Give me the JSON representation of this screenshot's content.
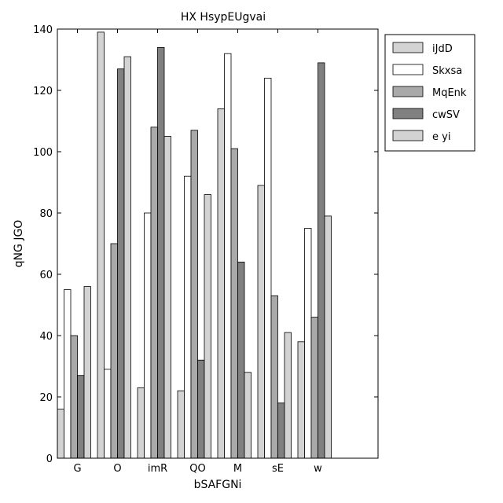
{
  "chart_data": {
    "type": "bar",
    "title": "HX HsypEUgvai",
    "xlabel": "bSAFGNi",
    "ylabel": "qNG JGO",
    "categories": [
      "G",
      "O",
      "imR",
      "QO",
      "M",
      "sE",
      "w"
    ],
    "series": [
      {
        "name": "iJdD",
        "color": "#d3d3d3",
        "values": [
          16,
          139,
          23,
          22,
          114,
          89,
          38
        ]
      },
      {
        "name": "Skxsa",
        "color": "#ffffff",
        "values": [
          55,
          29,
          80,
          92,
          132,
          124,
          75
        ]
      },
      {
        "name": "MqEnk",
        "color": "#a9a9a9",
        "values": [
          40,
          70,
          108,
          107,
          101,
          53,
          46
        ]
      },
      {
        "name": "cwSV",
        "color": "#808080",
        "values": [
          27,
          127,
          134,
          32,
          64,
          18,
          129
        ]
      },
      {
        "name": "e yi",
        "color": "#d3d3d3",
        "values": [
          56,
          131,
          105,
          86,
          28,
          41,
          79
        ]
      }
    ],
    "ylim": [
      0,
      140
    ],
    "xlim": [
      -0.5,
      7.5
    ],
    "yticks": [
      0,
      20,
      40,
      60,
      80,
      100,
      120,
      140
    ],
    "grid": false,
    "legend": "top-right"
  }
}
